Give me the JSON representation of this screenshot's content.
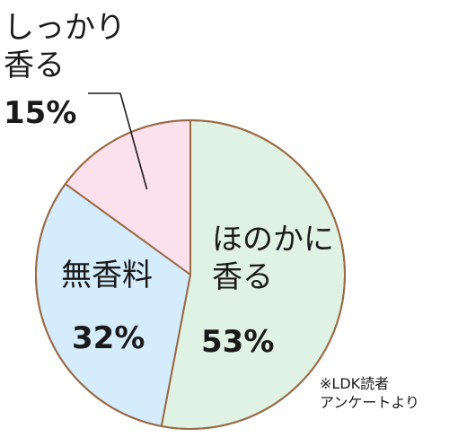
{
  "chart_data": {
    "type": "pie",
    "title": "",
    "categories": [
      "ほのかに香る",
      "無香料",
      "しっかり香る"
    ],
    "values": [
      53,
      32,
      15
    ],
    "unit": "%",
    "slices": [
      {
        "label_lines": [
          "ほのかに",
          "香る"
        ],
        "percent_label": "53%",
        "value": 53,
        "color": "#e0f2e4"
      },
      {
        "label_lines": [
          "無香料"
        ],
        "percent_label": "32%",
        "value": 32,
        "color": "#d4ecfb"
      },
      {
        "label_lines": [
          "しっかり",
          "香る"
        ],
        "percent_label": "15%",
        "value": 15,
        "color": "#fbe1ec"
      }
    ],
    "outline_color": "#9a6a45",
    "legend": "none",
    "source_note": [
      "※LDK読者",
      "アンケートより"
    ]
  }
}
